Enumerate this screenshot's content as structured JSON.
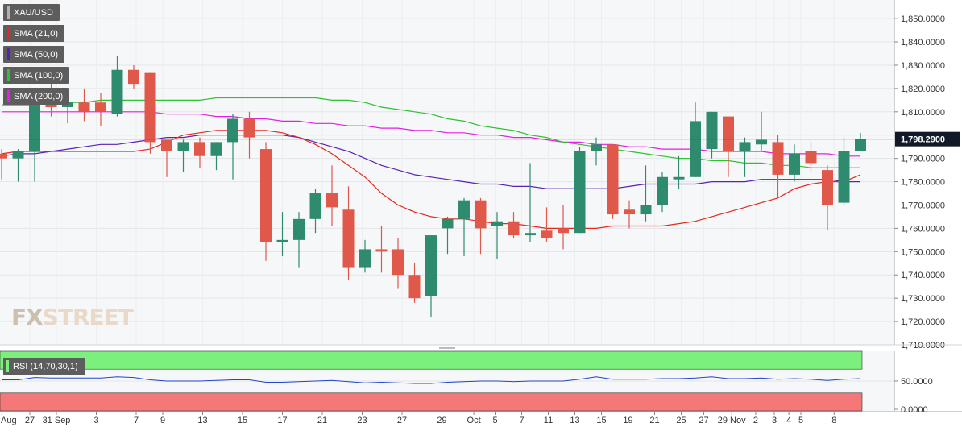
{
  "legend": {
    "instrument": "XAU/USD",
    "sma21": "SMA (21,0)",
    "sma50": "SMA (50,0)",
    "sma100": "SMA (100,0)",
    "sma200": "SMA (200,0)"
  },
  "rsi_label": "RSI (14,70,30,1)",
  "watermark": {
    "part1": "FX",
    "part2": "STREET"
  },
  "colors": {
    "up": "#2e8b6e",
    "down": "#e0584a",
    "sma21": "#e8281e",
    "sma50": "#5a22b4",
    "sma100": "#2ec22e",
    "sma200": "#e41ee4",
    "rsi_line": "#2244cc",
    "rsi_upper": "#7cf07c",
    "rsi_lower": "#f47878"
  },
  "chart_data": [
    {
      "type": "candlestick",
      "instrument": "XAU/USD",
      "ylim": [
        1710,
        1858
      ],
      "y_ticks": [
        "1,710.0000",
        "1,720.0000",
        "1,730.0000",
        "1,740.0000",
        "1,750.0000",
        "1,760.0000",
        "1,770.0000",
        "1,780.0000",
        "1,790.0000",
        "1,800.0000",
        "1,810.0000",
        "1,820.0000",
        "1,830.0000",
        "1,840.0000",
        "1,850.0000"
      ],
      "x_ticks": [
        "Aug",
        "27",
        "31 Sep",
        "3",
        "7",
        "9",
        "13",
        "15",
        "17",
        "21",
        "23",
        "27",
        "29",
        "Oct",
        "5",
        "7",
        "11",
        "13",
        "15",
        "19",
        "21",
        "25",
        "27",
        "29 Nov",
        "2",
        "3",
        "4",
        "5",
        "8"
      ],
      "last_price": "1,798.2900",
      "candles": [
        [
          1792,
          1794,
          1781,
          1790
        ],
        [
          1790,
          1794,
          1780,
          1793
        ],
        [
          1793,
          1815,
          1780,
          1815
        ],
        [
          1815,
          1824,
          1808,
          1812
        ],
        [
          1812,
          1817,
          1805,
          1814
        ],
        [
          1814,
          1820,
          1806,
          1810
        ],
        [
          1814,
          1818,
          1804,
          1810
        ],
        [
          1809,
          1834,
          1808,
          1828
        ],
        [
          1828,
          1830,
          1820,
          1822
        ],
        [
          1827,
          1827,
          1792,
          1797
        ],
        [
          1798,
          1798,
          1782,
          1793
        ],
        [
          1793,
          1798,
          1784,
          1797
        ],
        [
          1797,
          1799,
          1786,
          1791
        ],
        [
          1791,
          1797,
          1785,
          1797
        ],
        [
          1797,
          1809,
          1781,
          1807
        ],
        [
          1807,
          1810,
          1790,
          1799
        ],
        [
          1794,
          1797,
          1746,
          1754
        ],
        [
          1754,
          1767,
          1748,
          1755
        ],
        [
          1755,
          1767,
          1743,
          1764
        ],
        [
          1764,
          1777,
          1758,
          1775
        ],
        [
          1775,
          1787,
          1761,
          1769
        ],
        [
          1768,
          1778,
          1738,
          1743
        ],
        [
          1743,
          1755,
          1741,
          1751
        ],
        [
          1751,
          1761,
          1741,
          1750
        ],
        [
          1751,
          1756,
          1734,
          1740
        ],
        [
          1740,
          1745,
          1728,
          1730
        ],
        [
          1731,
          1757,
          1722,
          1757
        ],
        [
          1760,
          1765,
          1749,
          1764
        ],
        [
          1764,
          1773,
          1748,
          1772
        ],
        [
          1772,
          1773,
          1749,
          1760
        ],
        [
          1761,
          1767,
          1747,
          1763
        ],
        [
          1763,
          1767,
          1756,
          1757
        ],
        [
          1757,
          1788,
          1754,
          1758
        ],
        [
          1759,
          1769,
          1754,
          1756
        ],
        [
          1760,
          1770,
          1751,
          1758
        ],
        [
          1758,
          1795,
          1758,
          1793
        ],
        [
          1793,
          1799,
          1787,
          1796
        ],
        [
          1796,
          1796,
          1764,
          1766
        ],
        [
          1768,
          1772,
          1760,
          1766
        ],
        [
          1766,
          1787,
          1763,
          1770
        ],
        [
          1770,
          1784,
          1767,
          1782
        ],
        [
          1781,
          1791,
          1777,
          1782
        ],
        [
          1782,
          1814,
          1782,
          1806
        ],
        [
          1794,
          1810,
          1790,
          1810
        ],
        [
          1808,
          1808,
          1782,
          1793
        ],
        [
          1793,
          1799,
          1782,
          1797
        ],
        [
          1796,
          1810,
          1793,
          1798
        ],
        [
          1797,
          1800,
          1773,
          1783
        ],
        [
          1783,
          1796,
          1780,
          1792
        ],
        [
          1793,
          1797,
          1784,
          1788
        ],
        [
          1785,
          1787,
          1759,
          1770
        ],
        [
          1771,
          1799,
          1770,
          1793
        ],
        [
          1793,
          1801,
          1793,
          1798.29
        ]
      ],
      "sma": {
        "sma21": [
          1792,
          1793,
          1793,
          1793,
          1793,
          1793,
          1793,
          1793,
          1793,
          1794,
          1797,
          1800,
          1801,
          1802,
          1802,
          1802,
          1802,
          1801,
          1799,
          1796,
          1792,
          1787,
          1782,
          1775,
          1770,
          1767,
          1765,
          1764,
          1764,
          1763,
          1762,
          1762,
          1761,
          1760,
          1760,
          1760,
          1760,
          1761,
          1761,
          1761,
          1761,
          1762,
          1763,
          1765,
          1767,
          1769,
          1771,
          1773,
          1777,
          1779,
          1780,
          1780,
          1783
        ],
        "sma50": [
          1791,
          1792,
          1792,
          1793,
          1794,
          1795,
          1796,
          1796,
          1797,
          1798,
          1799,
          1799,
          1800,
          1800,
          1800,
          1800,
          1800,
          1800,
          1799,
          1797,
          1795,
          1793,
          1790,
          1787,
          1785,
          1783,
          1782,
          1781,
          1780,
          1779,
          1779,
          1778,
          1778,
          1777,
          1777,
          1777,
          1777,
          1777,
          1778,
          1779,
          1779,
          1779,
          1779,
          1780,
          1780,
          1780,
          1781,
          1781,
          1781,
          1781,
          1781,
          1780,
          1780
        ],
        "sma100": [
          1813,
          1813,
          1813,
          1814,
          1814,
          1814,
          1815,
          1815,
          1815,
          1815,
          1815,
          1815,
          1815,
          1816,
          1816,
          1816,
          1816,
          1816,
          1816,
          1816,
          1815,
          1815,
          1814,
          1812,
          1811,
          1810,
          1809,
          1807,
          1806,
          1804,
          1803,
          1802,
          1800,
          1799,
          1797,
          1796,
          1795,
          1794,
          1793,
          1792,
          1791,
          1790,
          1790,
          1789,
          1789,
          1788,
          1788,
          1787,
          1787,
          1786,
          1786,
          1786,
          1786
        ],
        "sma200": [
          1810,
          1810,
          1810,
          1810,
          1810,
          1810,
          1810,
          1810,
          1810,
          1810,
          1809,
          1809,
          1809,
          1808,
          1808,
          1807,
          1807,
          1806,
          1806,
          1805,
          1805,
          1804,
          1804,
          1803,
          1803,
          1802,
          1802,
          1801,
          1801,
          1800,
          1800,
          1799,
          1799,
          1798,
          1797,
          1797,
          1796,
          1796,
          1795,
          1795,
          1794,
          1794,
          1794,
          1793,
          1793,
          1793,
          1793,
          1792,
          1792,
          1792,
          1792,
          1791,
          1791
        ]
      }
    },
    {
      "type": "line",
      "indicator": "RSI (14,70,30,1)",
      "ylim": [
        0,
        100
      ],
      "y_ticks": [
        "0.0000",
        "50.0000"
      ],
      "upper_band": 70,
      "lower_band": 30,
      "values": [
        52,
        52,
        56,
        55,
        55,
        55,
        55,
        57,
        56,
        52,
        50,
        50,
        50,
        51,
        52,
        52,
        48,
        48,
        49,
        50,
        51,
        49,
        47,
        48,
        47,
        46,
        46,
        48,
        49,
        50,
        50,
        49,
        50,
        50,
        50,
        53,
        57,
        53,
        53,
        53,
        54,
        54,
        55,
        57,
        54,
        54,
        55,
        53,
        54,
        53,
        51,
        53,
        54
      ]
    }
  ]
}
